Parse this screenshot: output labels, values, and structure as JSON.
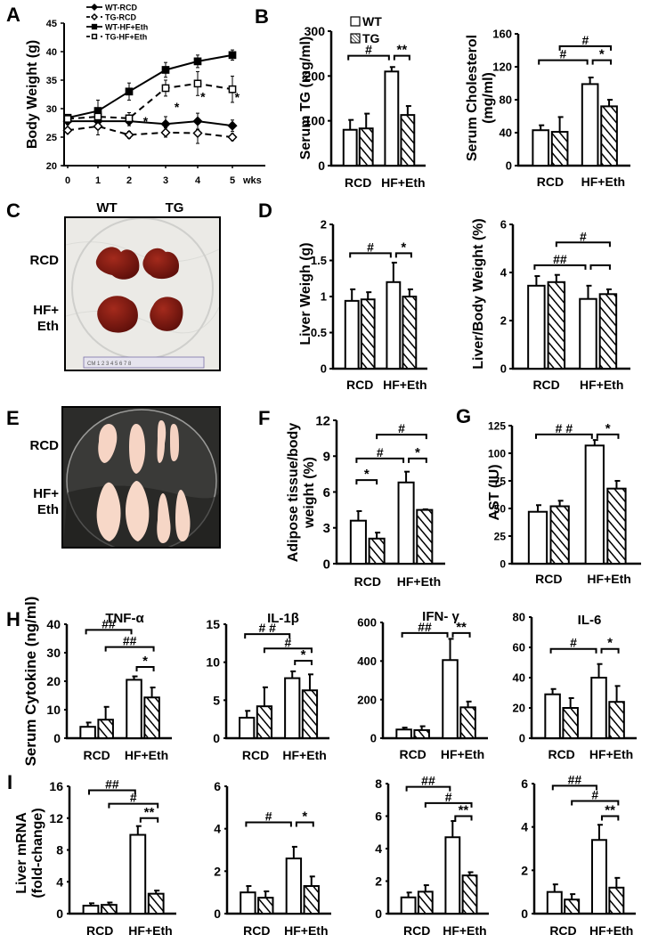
{
  "panels": {
    "A": {
      "letter": "A"
    },
    "B": {
      "letter": "B"
    },
    "C": {
      "letter": "C",
      "col_labels": [
        "WT",
        "TG"
      ],
      "row_labels": [
        "RCD",
        "HF+\nEth"
      ],
      "ruler_text": "CM 1 2 3 4 5 6 7 8"
    },
    "D": {
      "letter": "D"
    },
    "E": {
      "letter": "E",
      "row_labels": [
        "RCD",
        "HF+\nEth"
      ]
    },
    "F": {
      "letter": "F"
    },
    "G": {
      "letter": "G"
    },
    "H": {
      "letter": "H"
    },
    "I": {
      "letter": "I"
    }
  },
  "colors": {
    "axis": "#000000",
    "bar_fill": "#ffffff",
    "hatch": "#000000",
    "liver": "#7a1410",
    "fat": "#f6d6c6",
    "dish_bg_C": "#ecebe8",
    "dish_bg_E": "#2a2a28"
  },
  "chart_data": [
    {
      "id": "A",
      "type": "line",
      "title": "",
      "xlabel": "wks",
      "ylabel": "Body Weight (g)",
      "x": [
        0,
        1,
        2,
        3,
        4,
        5
      ],
      "ylim": [
        20,
        45
      ],
      "yticks": [
        20,
        25,
        30,
        35,
        40,
        45
      ],
      "series": [
        {
          "name": "WT-RCD",
          "marker": "filled-diamond",
          "dash": false,
          "values": [
            27.8,
            27.8,
            27.8,
            27.3,
            27.8,
            27.0
          ],
          "err": [
            0.6,
            0.6,
            0.8,
            1.3,
            1.4,
            1.0
          ]
        },
        {
          "name": "TG-RCD",
          "marker": "open-diamond",
          "dash": true,
          "values": [
            26.2,
            26.9,
            25.4,
            25.8,
            25.7,
            25.0
          ],
          "err": [
            0.5,
            1.5,
            0.6,
            0.8,
            1.8,
            0.6
          ]
        },
        {
          "name": "WT-HF+Eth",
          "marker": "filled-square",
          "dash": false,
          "values": [
            28.4,
            29.6,
            33.0,
            36.8,
            38.3,
            39.4
          ],
          "err": [
            0.4,
            1.9,
            1.5,
            1.3,
            1.1,
            0.9
          ]
        },
        {
          "name": "TG-HF+Eth",
          "marker": "open-square",
          "dash": true,
          "values": [
            28.2,
            28.6,
            28.3,
            33.6,
            34.4,
            33.4
          ],
          "err": [
            0.6,
            0.6,
            1.0,
            1.4,
            2.1,
            2.3
          ]
        }
      ],
      "annotations": [
        {
          "x": 2.45,
          "y": 28.0,
          "text": "*"
        },
        {
          "x": 3.35,
          "y": 30.5,
          "text": "*"
        },
        {
          "x": 4.15,
          "y": 32.3,
          "text": "*"
        },
        {
          "x": 5.15,
          "y": 32.2,
          "text": "*"
        }
      ]
    },
    {
      "id": "B1",
      "type": "bar",
      "ylabel": "Serum TG (mg/ml)",
      "categories": [
        "RCD",
        "HF+Eth"
      ],
      "ylim": [
        0,
        300
      ],
      "yticks": [
        0,
        100,
        200,
        300
      ],
      "series": [
        {
          "name": "WT",
          "values": [
            80,
            210
          ],
          "err": [
            22,
            10
          ]
        },
        {
          "name": "TG",
          "values": [
            83,
            113
          ],
          "err": [
            33,
            20
          ]
        }
      ],
      "legend": [
        "WT",
        "TG"
      ],
      "brackets": [
        {
          "from": 0,
          "to": 2,
          "y": 245,
          "text": "#"
        },
        {
          "from": 2,
          "to": 3,
          "y": 245,
          "text": "**"
        }
      ]
    },
    {
      "id": "B2",
      "type": "bar",
      "ylabel": "Serum Cholesterol\n(mg/ml)",
      "categories": [
        "RCD",
        "HF+Eth"
      ],
      "ylim": [
        0,
        160
      ],
      "yticks": [
        0,
        40,
        80,
        120,
        160
      ],
      "series": [
        {
          "name": "WT",
          "values": [
            43,
            99
          ],
          "err": [
            6,
            8
          ]
        },
        {
          "name": "TG",
          "values": [
            41,
            72
          ],
          "err": [
            18,
            8
          ]
        }
      ],
      "brackets": [
        {
          "from": 1,
          "to": 3,
          "y": 145,
          "text": "#"
        },
        {
          "from": 0,
          "to": 2,
          "y": 128,
          "text": "#"
        },
        {
          "from": 2,
          "to": 3,
          "y": 128,
          "text": "*"
        }
      ]
    },
    {
      "id": "D1",
      "type": "bar",
      "ylabel": "Liver Weigh (g)",
      "categories": [
        "RCD",
        "HF+Eth"
      ],
      "ylim": [
        0,
        2
      ],
      "yticks": [
        0,
        0.5,
        1,
        1.5,
        2
      ],
      "series": [
        {
          "name": "WT",
          "values": [
            0.94,
            1.2
          ],
          "err": [
            0.16,
            0.27
          ]
        },
        {
          "name": "TG",
          "values": [
            0.96,
            1.0
          ],
          "err": [
            0.1,
            0.1
          ]
        }
      ],
      "brackets": [
        {
          "from": 0,
          "to": 2,
          "y": 1.6,
          "text": "#"
        },
        {
          "from": 2,
          "to": 3,
          "y": 1.6,
          "text": "*"
        }
      ]
    },
    {
      "id": "D2",
      "type": "bar",
      "ylabel": "Liver/Body  Weight (%)",
      "categories": [
        "RCD",
        "HF+Eth"
      ],
      "ylim": [
        0,
        6
      ],
      "yticks": [
        0,
        2,
        4,
        6
      ],
      "series": [
        {
          "name": "WT",
          "values": [
            3.45,
            2.9
          ],
          "err": [
            0.4,
            0.55
          ]
        },
        {
          "name": "TG",
          "values": [
            3.6,
            3.1
          ],
          "err": [
            0.3,
            0.2
          ]
        }
      ],
      "brackets": [
        {
          "from": 1,
          "to": 3,
          "y": 5.25,
          "text": "#"
        },
        {
          "from": 0,
          "to": 2,
          "y": 4.3,
          "text": "##"
        },
        {
          "from": 2,
          "to": 3,
          "y": 4.3,
          "text": ""
        }
      ]
    },
    {
      "id": "F",
      "type": "bar",
      "ylabel": "Adipose tissue/body\nweight (%)",
      "categories": [
        "RCD",
        "HF+Eth"
      ],
      "ylim": [
        0,
        12
      ],
      "yticks": [
        0,
        3,
        6,
        9,
        12
      ],
      "series": [
        {
          "name": "WT",
          "values": [
            3.6,
            6.8
          ],
          "err": [
            0.8,
            0.9
          ]
        },
        {
          "name": "TG",
          "values": [
            2.1,
            4.5
          ],
          "err": [
            0.5,
            0.05
          ]
        }
      ],
      "brackets": [
        {
          "from": 1,
          "to": 3,
          "y": 10.8,
          "text": "#"
        },
        {
          "from": 0,
          "to": 2,
          "y": 8.8,
          "text": "#"
        },
        {
          "from": 2,
          "to": 3,
          "y": 8.8,
          "text": "*"
        },
        {
          "from": 0,
          "to": 1,
          "y": 7.0,
          "text": "*"
        }
      ]
    },
    {
      "id": "G",
      "type": "bar",
      "ylabel": "AST (IU)",
      "categories": [
        "RCD",
        "HF+Eth"
      ],
      "ylim": [
        0,
        125
      ],
      "yticks": [
        0,
        25,
        50,
        75,
        100,
        125
      ],
      "series": [
        {
          "name": "WT",
          "values": [
            47,
            107
          ],
          "err": [
            6,
            5
          ]
        },
        {
          "name": "TG",
          "values": [
            52,
            68
          ],
          "err": [
            5,
            7
          ]
        }
      ],
      "brackets": [
        {
          "from": 0,
          "to": 2,
          "y": 117,
          "text": "# #"
        },
        {
          "from": 2,
          "to": 3,
          "y": 117,
          "text": "*"
        }
      ]
    },
    {
      "id": "H1",
      "type": "bar",
      "title": "TNF-α",
      "ylabel": "Serum Cytokine (ng/ml)",
      "categories": [
        "RCD",
        "HF+Eth"
      ],
      "ylim": [
        0,
        40
      ],
      "yticks": [
        0,
        10,
        20,
        30,
        40
      ],
      "series": [
        {
          "name": "WT",
          "values": [
            4,
            20.5
          ],
          "err": [
            1.5,
            1.2
          ]
        },
        {
          "name": "TG",
          "values": [
            6.5,
            14.3
          ],
          "err": [
            4.5,
            3.5
          ]
        }
      ],
      "brackets": [
        {
          "from": 0,
          "to": 2,
          "y": 38,
          "text": "##"
        },
        {
          "from": 1,
          "to": 3,
          "y": 32,
          "text": "##"
        },
        {
          "from": 2,
          "to": 3,
          "y": 25,
          "text": "*"
        }
      ]
    },
    {
      "id": "H2",
      "type": "bar",
      "title": "IL-1β",
      "ylabel": "",
      "categories": [
        "RCD",
        "HF+Eth"
      ],
      "ylim": [
        0,
        15
      ],
      "yticks": [
        0,
        5,
        10,
        15
      ],
      "series": [
        {
          "name": "WT",
          "values": [
            2.7,
            7.9
          ],
          "err": [
            0.9,
            0.9
          ]
        },
        {
          "name": "TG",
          "values": [
            4.2,
            6.3
          ],
          "err": [
            2.5,
            2.1
          ]
        }
      ],
      "brackets": [
        {
          "from": 0,
          "to": 2,
          "y": 13.7,
          "text": "# #"
        },
        {
          "from": 1,
          "to": 3,
          "y": 11.8,
          "text": "#"
        },
        {
          "from": 2,
          "to": 3,
          "y": 10.2,
          "text": "*"
        }
      ]
    },
    {
      "id": "H3",
      "type": "bar",
      "title": "IFN- γ",
      "ylabel": "",
      "categories": [
        "RCD",
        "HF+Eth"
      ],
      "ylim": [
        0,
        600
      ],
      "yticks": [
        0,
        200,
        400,
        600
      ],
      "series": [
        {
          "name": "WT",
          "values": [
            45,
            405
          ],
          "err": [
            10,
            110
          ]
        },
        {
          "name": "TG",
          "values": [
            42,
            160
          ],
          "err": [
            20,
            30
          ]
        }
      ],
      "brackets": [
        {
          "from": 0,
          "to": 2,
          "y": 545,
          "text": "##"
        },
        {
          "from": 2,
          "to": 3,
          "y": 545,
          "text": "**"
        }
      ]
    },
    {
      "id": "H4",
      "type": "bar",
      "title": "IL-6",
      "ylabel": "",
      "categories": [
        "RCD",
        "HF+Eth"
      ],
      "ylim": [
        0,
        80
      ],
      "yticks": [
        0,
        20,
        40,
        60,
        80
      ],
      "series": [
        {
          "name": "WT",
          "values": [
            29,
            40
          ],
          "err": [
            3.5,
            9
          ]
        },
        {
          "name": "TG",
          "values": [
            20,
            24
          ],
          "err": [
            6.5,
            10.5
          ]
        }
      ],
      "brackets": [
        {
          "from": 0,
          "to": 2,
          "y": 59,
          "text": "#"
        },
        {
          "from": 2,
          "to": 3,
          "y": 59,
          "text": "*"
        }
      ]
    },
    {
      "id": "I1",
      "type": "bar",
      "ylabel": "Liver mRNA\n(fold-change)",
      "categories": [
        "RCD",
        "HF+Eth"
      ],
      "ylim": [
        0,
        16
      ],
      "yticks": [
        0,
        4,
        8,
        12,
        16
      ],
      "series": [
        {
          "name": "WT",
          "values": [
            1.0,
            9.9
          ],
          "err": [
            0.3,
            1.1
          ]
        },
        {
          "name": "TG",
          "values": [
            1.1,
            2.5
          ],
          "err": [
            0.3,
            0.4
          ]
        }
      ],
      "brackets": [
        {
          "from": 0,
          "to": 2,
          "y": 15.5,
          "text": "##"
        },
        {
          "from": 1,
          "to": 3,
          "y": 13.8,
          "text": "#"
        },
        {
          "from": 2,
          "to": 3,
          "y": 12.0,
          "text": "**"
        }
      ]
    },
    {
      "id": "I2",
      "type": "bar",
      "ylabel": "",
      "categories": [
        "RCD",
        "HF+Eth"
      ],
      "ylim": [
        0,
        6
      ],
      "yticks": [
        0,
        2,
        4,
        6
      ],
      "series": [
        {
          "name": "WT",
          "values": [
            1.0,
            2.6
          ],
          "err": [
            0.3,
            0.55
          ]
        },
        {
          "name": "TG",
          "values": [
            0.75,
            1.3
          ],
          "err": [
            0.3,
            0.45
          ]
        }
      ],
      "brackets": [
        {
          "from": 0,
          "to": 2,
          "y": 4.3,
          "text": "#"
        },
        {
          "from": 2,
          "to": 3,
          "y": 4.3,
          "text": "*"
        }
      ]
    },
    {
      "id": "I3",
      "type": "bar",
      "ylabel": "",
      "categories": [
        "RCD",
        "HF+Eth"
      ],
      "ylim": [
        0,
        8
      ],
      "yticks": [
        0,
        2,
        4,
        6,
        8
      ],
      "series": [
        {
          "name": "WT",
          "values": [
            1.0,
            4.7
          ],
          "err": [
            0.3,
            1.0
          ]
        },
        {
          "name": "TG",
          "values": [
            1.35,
            2.35
          ],
          "err": [
            0.4,
            0.2
          ]
        }
      ],
      "brackets": [
        {
          "from": 0,
          "to": 2,
          "y": 7.8,
          "text": "##"
        },
        {
          "from": 1,
          "to": 3,
          "y": 6.8,
          "text": "#"
        },
        {
          "from": 2,
          "to": 3,
          "y": 6.0,
          "text": "**"
        }
      ]
    },
    {
      "id": "I4",
      "type": "bar",
      "ylabel": "",
      "categories": [
        "RCD",
        "HF+Eth"
      ],
      "ylim": [
        0,
        6
      ],
      "yticks": [
        0,
        2,
        4,
        6
      ],
      "series": [
        {
          "name": "WT",
          "values": [
            1.0,
            3.4
          ],
          "err": [
            0.35,
            0.7
          ]
        },
        {
          "name": "TG",
          "values": [
            0.65,
            1.2
          ],
          "err": [
            0.25,
            0.45
          ]
        }
      ],
      "brackets": [
        {
          "from": 0,
          "to": 2,
          "y": 5.9,
          "text": "##"
        },
        {
          "from": 1,
          "to": 3,
          "y": 5.2,
          "text": "#"
        },
        {
          "from": 2,
          "to": 3,
          "y": 4.5,
          "text": "**"
        }
      ]
    }
  ]
}
